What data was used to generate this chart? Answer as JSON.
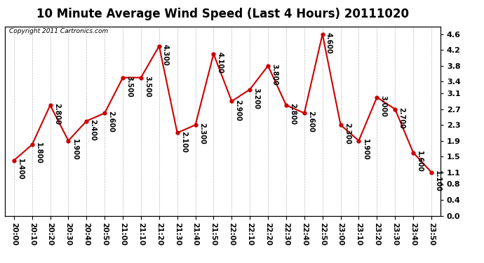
{
  "title": "10 Minute Average Wind Speed (Last 4 Hours) 20111020",
  "copyright": "Copyright 2011 Cartronics.com",
  "x_labels": [
    "20:00",
    "20:10",
    "20:20",
    "20:30",
    "20:40",
    "20:50",
    "21:00",
    "21:10",
    "21:20",
    "21:30",
    "21:40",
    "21:50",
    "22:00",
    "22:10",
    "22:20",
    "22:30",
    "22:40",
    "22:50",
    "23:00",
    "23:10",
    "23:20",
    "23:30",
    "23:40",
    "23:50"
  ],
  "y_values": [
    1.4,
    1.8,
    2.8,
    1.9,
    2.4,
    2.6,
    3.5,
    3.5,
    4.3,
    2.1,
    2.3,
    4.1,
    2.9,
    3.2,
    3.8,
    2.8,
    2.6,
    4.6,
    2.3,
    1.9,
    3.0,
    2.7,
    1.6,
    1.1
  ],
  "point_labels": [
    "1.400",
    "1.800",
    "2.800",
    "1.900",
    "2.400",
    "2.600",
    "3.500",
    "3.500",
    "4.300",
    "2.100",
    "2.300",
    "4.100",
    "2.900",
    "3.200",
    "3.800",
    "2.800",
    "2.600",
    "4.600",
    "2.300",
    "1.900",
    "3.000",
    "2.700",
    "1.600",
    "1.100"
  ],
  "line_color": "#cc0000",
  "marker_color": "#cc0000",
  "bg_color": "#ffffff",
  "grid_color": "#bbbbbb",
  "ylim": [
    0.0,
    4.8
  ],
  "yticks": [
    0.0,
    0.4,
    0.8,
    1.1,
    1.5,
    1.9,
    2.3,
    2.7,
    3.1,
    3.4,
    3.8,
    4.2,
    4.6
  ],
  "title_fontsize": 12,
  "label_fontsize": 7
}
